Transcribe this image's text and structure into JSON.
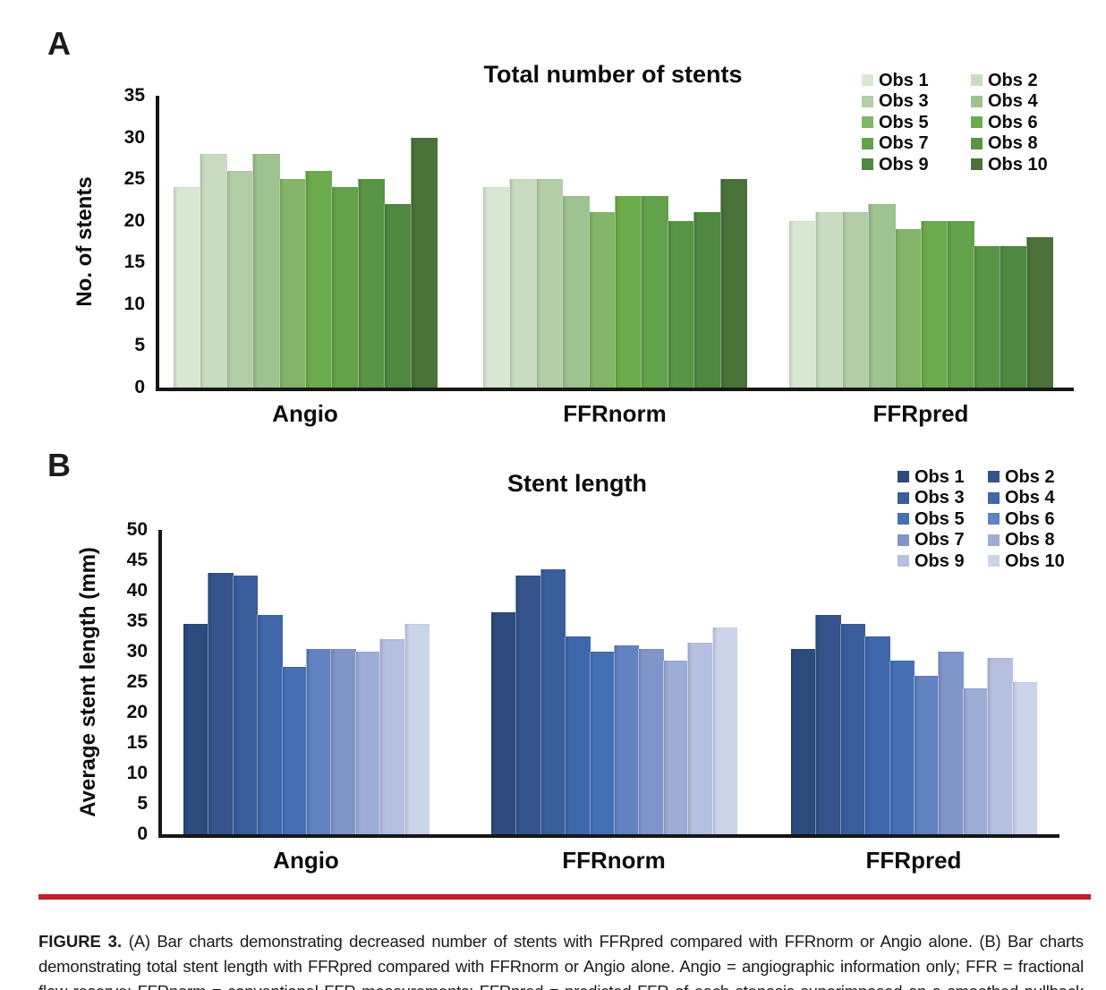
{
  "panels": [
    {
      "label": "A"
    },
    {
      "label": "B"
    }
  ],
  "chart_data": [
    {
      "type": "bar",
      "panel": "A",
      "title": "Total number of stents",
      "xlabel": "",
      "ylabel": "No. of stents",
      "categories": [
        "Angio",
        "FFRnorm",
        "FFRpred"
      ],
      "ylim": [
        0,
        35
      ],
      "yticks": [
        0,
        5,
        10,
        15,
        20,
        25,
        30,
        35
      ],
      "grid": false,
      "legend_position": "top-right",
      "legend_columns": 2,
      "series": [
        {
          "name": "Obs 1",
          "color": "#d8e7d2",
          "values": [
            24,
            24,
            20
          ]
        },
        {
          "name": "Obs 2",
          "color": "#c9dcc1",
          "values": [
            28,
            25,
            21
          ]
        },
        {
          "name": "Obs 3",
          "color": "#b4cda9",
          "values": [
            26,
            25,
            21
          ]
        },
        {
          "name": "Obs 4",
          "color": "#9fc291",
          "values": [
            28,
            23,
            22
          ]
        },
        {
          "name": "Obs 5",
          "color": "#84b568",
          "values": [
            25,
            21,
            19
          ]
        },
        {
          "name": "Obs 6",
          "color": "#6cab4d",
          "values": [
            26,
            23,
            20
          ]
        },
        {
          "name": "Obs 7",
          "color": "#63a24b",
          "values": [
            24,
            23,
            20
          ]
        },
        {
          "name": "Obs 8",
          "color": "#589544",
          "values": [
            25,
            20,
            17
          ]
        },
        {
          "name": "Obs 9",
          "color": "#4f8941",
          "values": [
            22,
            21,
            17
          ]
        },
        {
          "name": "Obs 10",
          "color": "#4b7339",
          "values": [
            30,
            25,
            18
          ]
        }
      ]
    },
    {
      "type": "bar",
      "panel": "B",
      "title": "Stent length",
      "xlabel": "",
      "ylabel": "Average stent length (mm)",
      "categories": [
        "Angio",
        "FFRnorm",
        "FFRpred"
      ],
      "ylim": [
        0,
        50
      ],
      "yticks": [
        0,
        5,
        10,
        15,
        20,
        25,
        30,
        35,
        40,
        45,
        50
      ],
      "grid": false,
      "legend_position": "top-right",
      "legend_columns": 2,
      "series": [
        {
          "name": "Obs 1",
          "color": "#2c4a7c",
          "values": [
            34.5,
            36.5,
            30.5
          ]
        },
        {
          "name": "Obs 2",
          "color": "#34548b",
          "values": [
            43,
            42.5,
            36
          ]
        },
        {
          "name": "Obs 3",
          "color": "#3a5e9c",
          "values": [
            42.5,
            43.5,
            34.5
          ]
        },
        {
          "name": "Obs 4",
          "color": "#3f67a9",
          "values": [
            36,
            32.5,
            32.5
          ]
        },
        {
          "name": "Obs 5",
          "color": "#4670b4",
          "values": [
            27.5,
            30,
            28.5
          ]
        },
        {
          "name": "Obs 6",
          "color": "#6282c0",
          "values": [
            30.5,
            31,
            26
          ]
        },
        {
          "name": "Obs 7",
          "color": "#8096cb",
          "values": [
            30.5,
            30.5,
            30
          ]
        },
        {
          "name": "Obs 8",
          "color": "#9dadd6",
          "values": [
            30,
            28.5,
            24
          ]
        },
        {
          "name": "Obs 9",
          "color": "#b5c0e0",
          "values": [
            32,
            31.5,
            29
          ]
        },
        {
          "name": "Obs 10",
          "color": "#ccd4ea",
          "values": [
            34.5,
            34,
            25
          ]
        }
      ]
    }
  ],
  "caption": {
    "label": "FIGURE 3.",
    "text": "(A) Bar charts demonstrating decreased number of stents with FFRpred compared with FFRnorm or Angio alone. (B) Bar charts demonstrating total stent length with FFRpred compared with FFRnorm or Angio alone. Angio = angiographic information only; FFR = fractional flow reserve; FFRnorm = conventional FFR measurements; FFRpred = predicted FFR of each stenosis superimposed on a smoothed pullback trace.",
    "rule_color": "#c01f2f"
  }
}
